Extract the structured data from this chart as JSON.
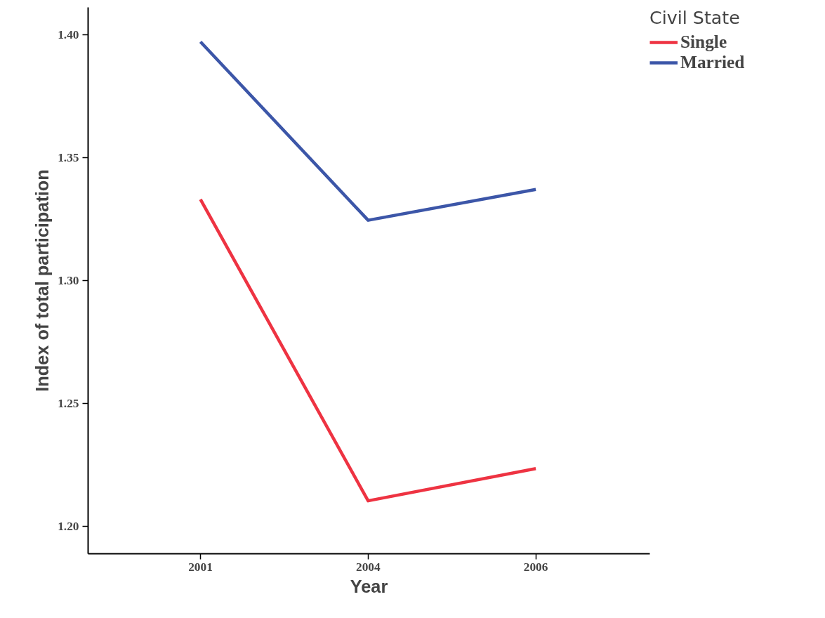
{
  "chart_data": {
    "type": "line",
    "xlabel": "Year",
    "ylabel": "Index of total participation",
    "legend_title": "Civil State",
    "categories": [
      "2001",
      "2004",
      "2006"
    ],
    "series": [
      {
        "name": "Single",
        "color": "#ee3342",
        "values": [
          1.333,
          1.2105,
          1.2236
        ]
      },
      {
        "name": "Married",
        "color": "#3c56a8",
        "values": [
          1.397,
          1.3245,
          1.337
        ]
      }
    ],
    "ylim": [
      1.189,
      1.411
    ],
    "yticks": [
      {
        "value": 1.2,
        "label": "1.20"
      },
      {
        "value": 1.25,
        "label": "1.25"
      },
      {
        "value": 1.3,
        "label": "1.30"
      },
      {
        "value": 1.35,
        "label": "1.35"
      },
      {
        "value": 1.4,
        "label": "1.40"
      }
    ],
    "grid": false,
    "legend": "top right",
    "marker": "none",
    "line_style": "solid"
  }
}
